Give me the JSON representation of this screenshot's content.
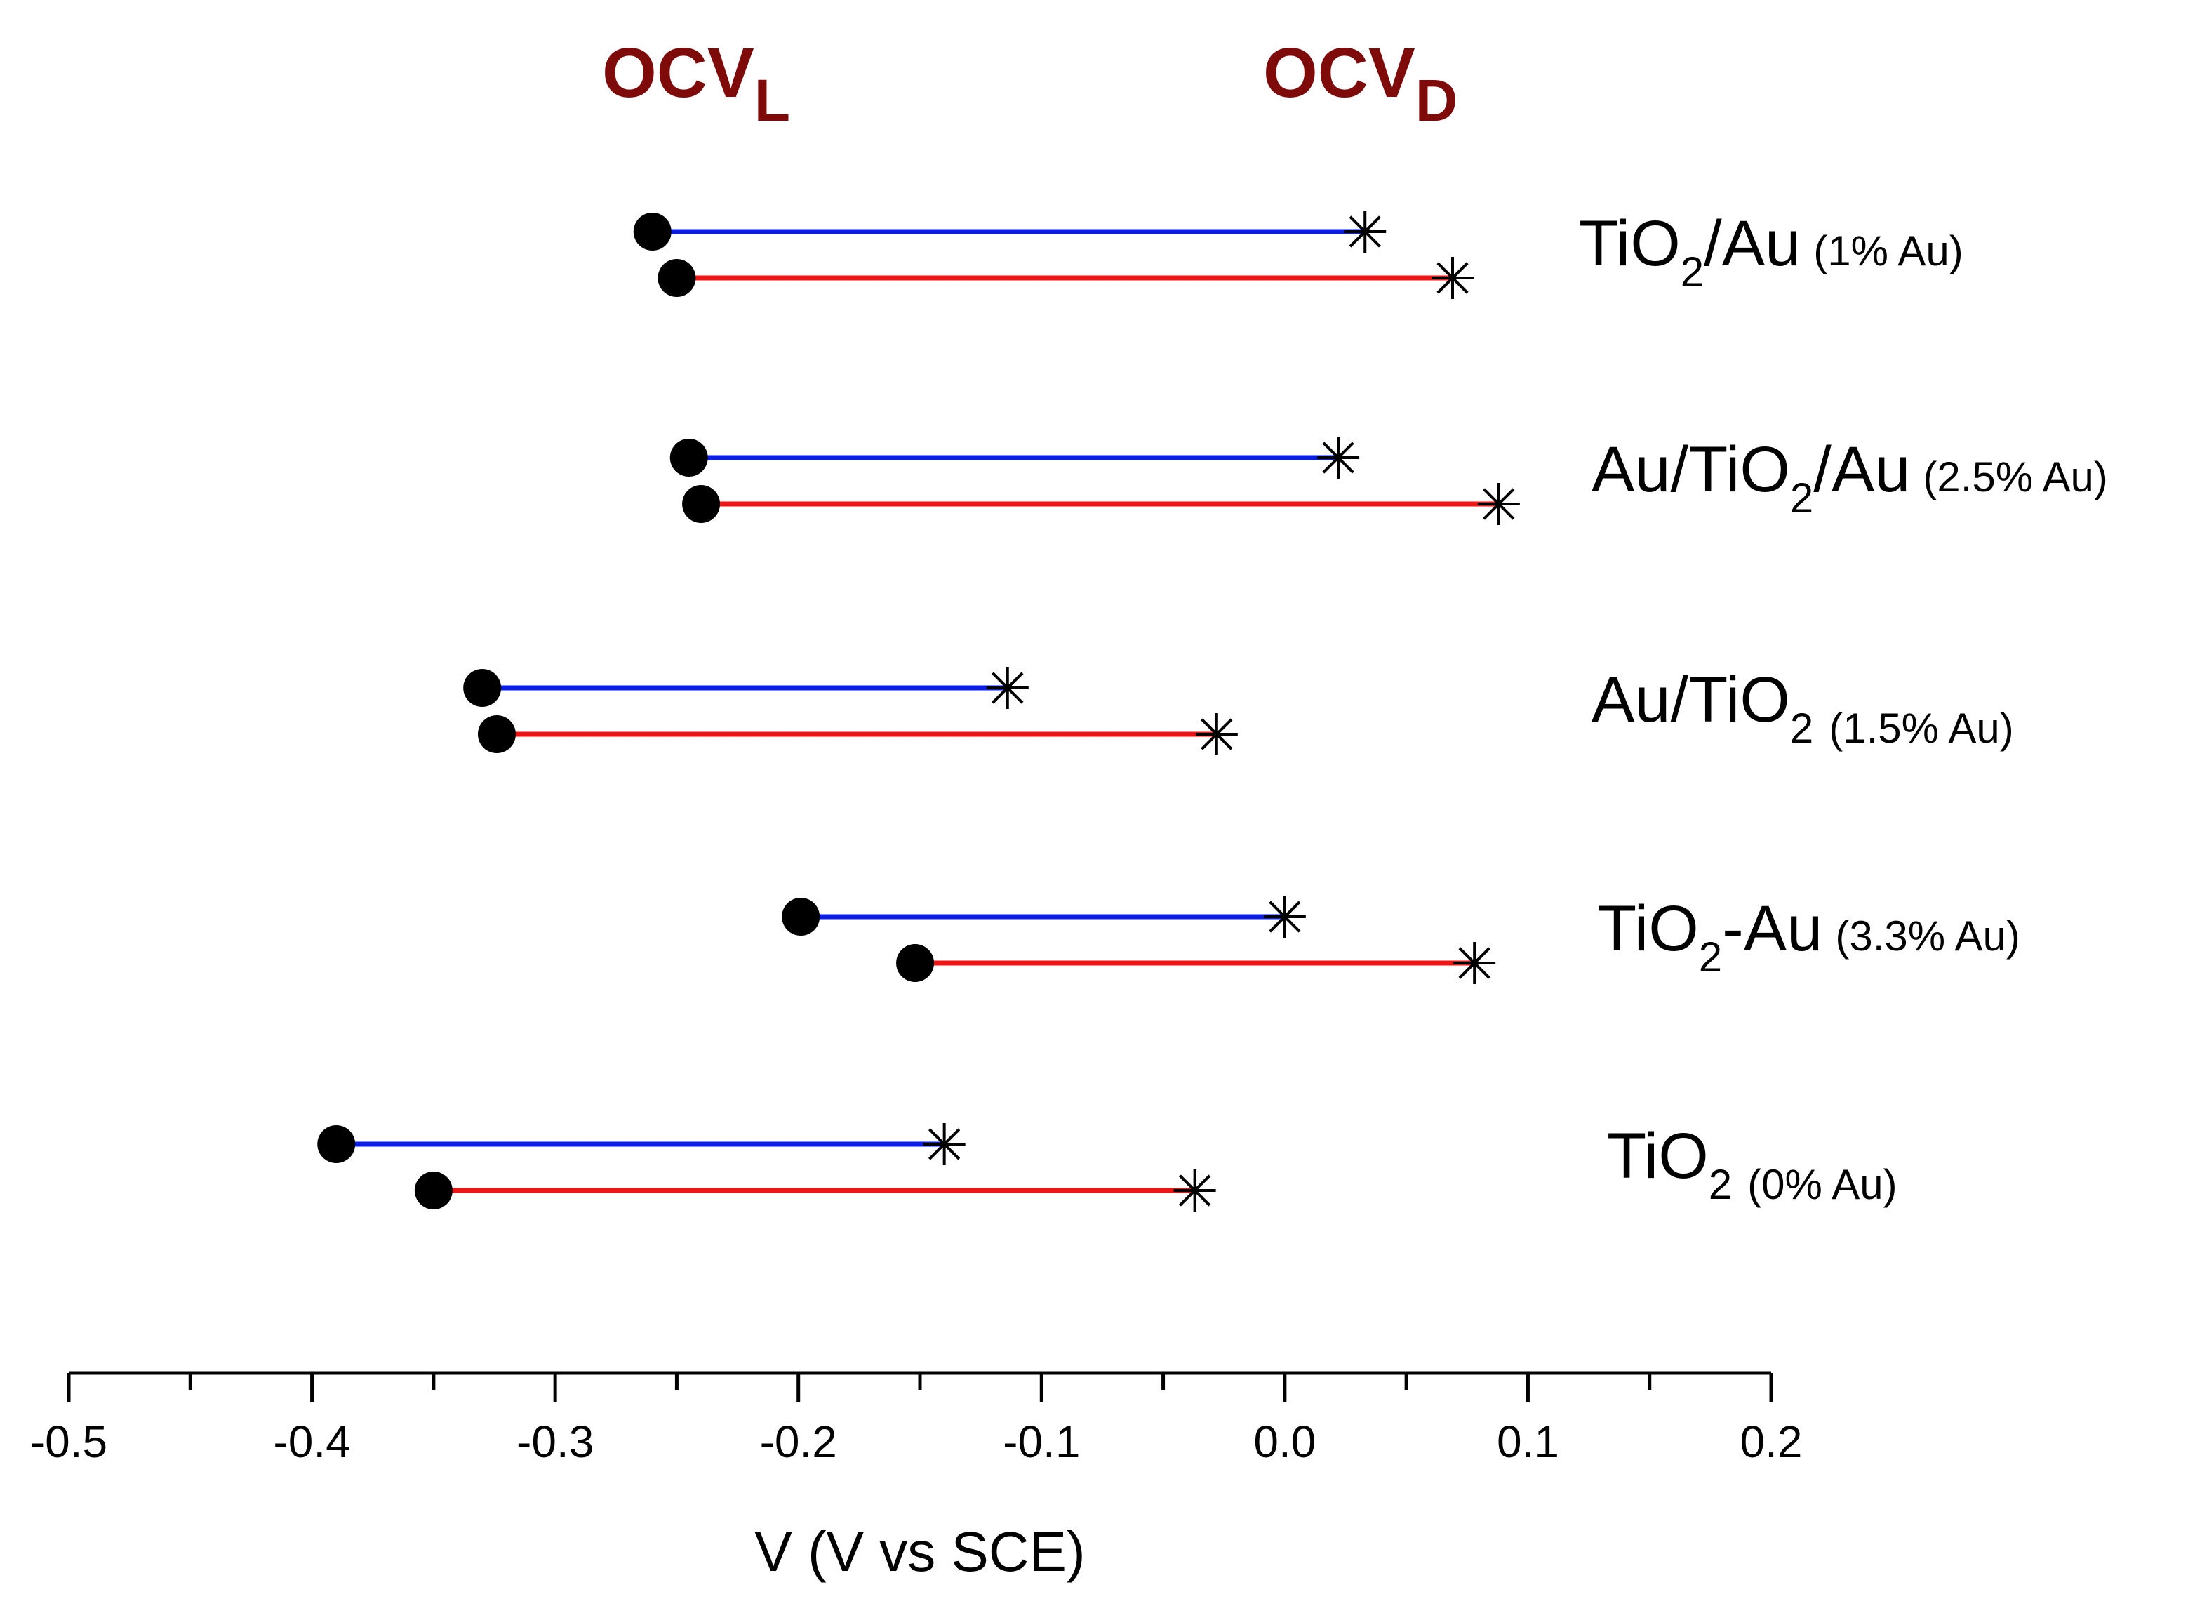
{
  "chart_data": {
    "type": "scatter",
    "title": "",
    "xlabel": "V (V vs SCE)",
    "ylabel": "",
    "xlim": [
      -0.5,
      0.2
    ],
    "grid": false,
    "x_ticks": [
      "-0.5",
      "-0.4",
      "-0.3",
      "-0.2",
      "-0.1",
      "0.0",
      "0.1",
      "0.2"
    ],
    "x_tick_values": [
      -0.5,
      -0.4,
      -0.3,
      -0.2,
      -0.1,
      0.0,
      0.1,
      0.2
    ],
    "headers": {
      "ocv_light": {
        "main": "OCV",
        "sub": "L"
      },
      "ocv_dark": {
        "main": "OCV",
        "sub": "D"
      }
    },
    "colors": {
      "series_1": "#0a1ee6",
      "series_2": "#f01414",
      "marker": "#000000",
      "header": "#7f0a0a"
    },
    "series": [
      {
        "name": "series_1",
        "color": "#0a1ee6"
      },
      {
        "name": "series_2",
        "color": "#f01414"
      }
    ],
    "samples": [
      {
        "label_main": "TiO",
        "label_sub": "2",
        "label_rest": "/Au",
        "label_pct": "(1% Au)",
        "lines": [
          {
            "series": "series_1",
            "ocv_l": -0.26,
            "ocv_d": 0.033
          },
          {
            "series": "series_2",
            "ocv_l": -0.25,
            "ocv_d": 0.069
          }
        ]
      },
      {
        "label_prefix": "Au/",
        "label_main": "TiO",
        "label_sub": "2",
        "label_rest": "/Au",
        "label_pct": "(2.5% Au)",
        "lines": [
          {
            "series": "series_1",
            "ocv_l": -0.245,
            "ocv_d": 0.022
          },
          {
            "series": "series_2",
            "ocv_l": -0.24,
            "ocv_d": 0.088
          }
        ]
      },
      {
        "label_prefix": "Au/",
        "label_main": "TiO",
        "label_sub": "2",
        "label_rest": "",
        "label_pct": "(1.5% Au)",
        "lines": [
          {
            "series": "series_1",
            "ocv_l": -0.33,
            "ocv_d": -0.114
          },
          {
            "series": "series_2",
            "ocv_l": -0.324,
            "ocv_d": -0.028
          }
        ]
      },
      {
        "label_main": "TiO",
        "label_sub": "2",
        "label_rest": "-Au",
        "label_pct": "(3.3% Au)",
        "lines": [
          {
            "series": "series_1",
            "ocv_l": -0.199,
            "ocv_d": 0.0
          },
          {
            "series": "series_2",
            "ocv_l": -0.152,
            "ocv_d": 0.078
          }
        ]
      },
      {
        "label_main": "TiO",
        "label_sub": "2",
        "label_rest": "",
        "label_pct": "(0% Au)",
        "lines": [
          {
            "series": "series_1",
            "ocv_l": -0.39,
            "ocv_d": -0.14
          },
          {
            "series": "series_2",
            "ocv_l": -0.35,
            "ocv_d": -0.037
          }
        ]
      }
    ]
  }
}
